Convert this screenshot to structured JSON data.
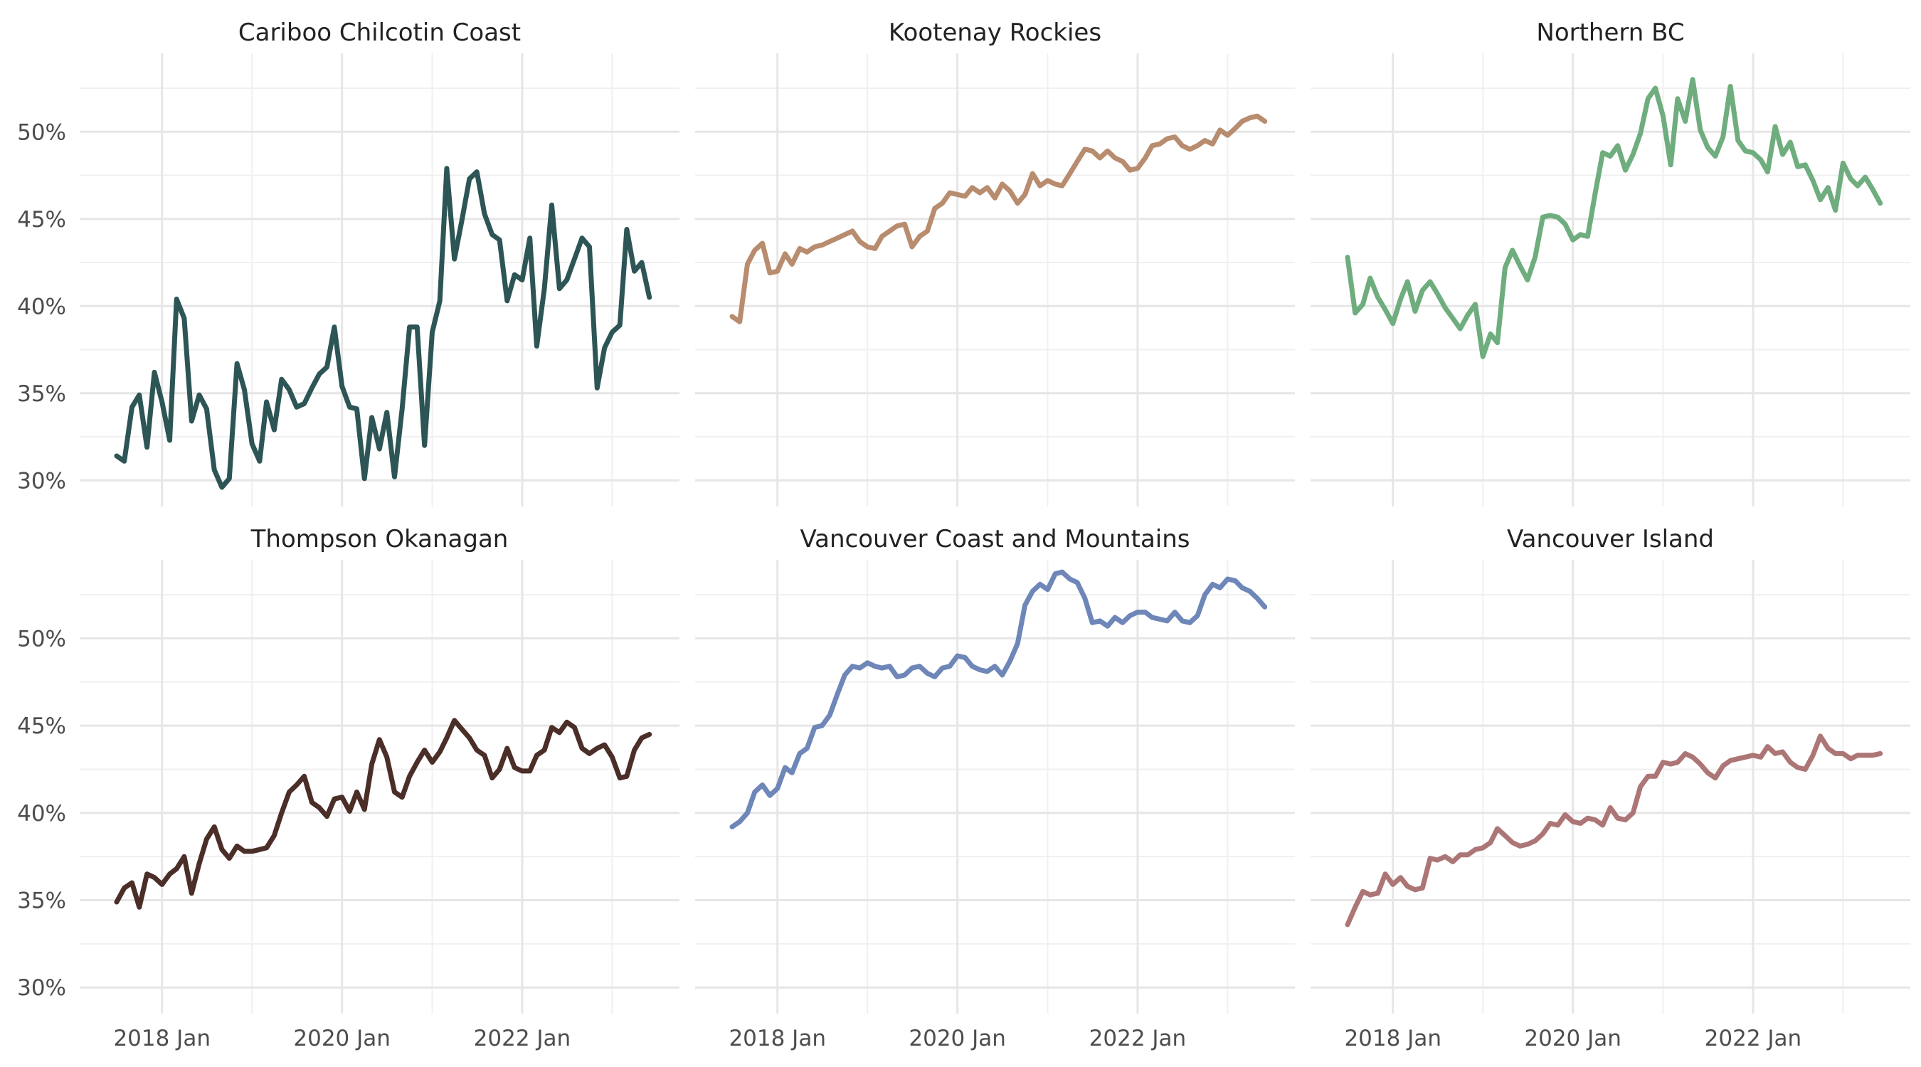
{
  "chart_data": {
    "type": "line",
    "layout": "facet-grid-2x3",
    "grid": true,
    "legend": "none",
    "ylim": [
      28.5,
      54.5
    ],
    "y_ticks": [
      30,
      35,
      40,
      45,
      50
    ],
    "y_tick_labels": [
      "30%",
      "35%",
      "40%",
      "45%",
      "50%"
    ],
    "y_minor_ticks": [
      32.5,
      37.5,
      42.5,
      47.5,
      52.5
    ],
    "xlim": [
      "2017-02-01",
      "2023-10-01"
    ],
    "x_ticks": [
      "2018-01-01",
      "2020-01-01",
      "2022-01-01"
    ],
    "x_tick_labels": [
      "2018 Jan",
      "2020 Jan",
      "2022 Jan"
    ],
    "x_minor_ticks": [
      "2019-01-01",
      "2021-01-01",
      "2023-01-01"
    ],
    "x_start": "2017-07",
    "x_step": "1 month",
    "panels": [
      {
        "title": "Cariboo Chilcotin Coast",
        "color": "#2e5555",
        "values": [
          31.4,
          31.1,
          34.2,
          34.9,
          31.9,
          36.2,
          34.5,
          32.3,
          40.4,
          39.3,
          33.4,
          34.9,
          34.1,
          30.6,
          29.6,
          30.1,
          36.7,
          35.2,
          32.1,
          31.1,
          34.5,
          32.9,
          35.8,
          35.2,
          34.2,
          34.4,
          35.3,
          36.1,
          36.5,
          38.8,
          35.4,
          34.2,
          34.1,
          30.1,
          33.6,
          31.8,
          33.9,
          30.2,
          34.1,
          38.8,
          38.8,
          32.0,
          38.5,
          40.3,
          47.9,
          42.7,
          44.9,
          47.3,
          47.7,
          45.3,
          44.1,
          43.8,
          40.3,
          41.8,
          41.5,
          43.9,
          37.7,
          41.0,
          45.8,
          41.0,
          41.5,
          42.7,
          43.9,
          43.4,
          35.3,
          37.6,
          38.5,
          38.9,
          44.4,
          42.0,
          42.5,
          40.5
        ]
      },
      {
        "title": "Kootenay Rockies",
        "color": "#b88c6e",
        "values": [
          39.4,
          39.1,
          42.4,
          43.2,
          43.6,
          41.9,
          42.0,
          43.0,
          42.4,
          43.3,
          43.1,
          43.4,
          43.5,
          43.7,
          43.9,
          44.1,
          44.3,
          43.7,
          43.4,
          43.3,
          44.0,
          44.3,
          44.6,
          44.7,
          43.4,
          44.0,
          44.3,
          45.6,
          45.9,
          46.5,
          46.4,
          46.3,
          46.8,
          46.5,
          46.8,
          46.2,
          47.0,
          46.6,
          45.9,
          46.4,
          47.6,
          46.9,
          47.2,
          47.0,
          46.9,
          47.6,
          48.3,
          49.0,
          48.9,
          48.5,
          48.9,
          48.5,
          48.3,
          47.8,
          47.9,
          48.5,
          49.2,
          49.3,
          49.6,
          49.7,
          49.2,
          49.0,
          49.2,
          49.5,
          49.3,
          50.1,
          49.8,
          50.2,
          50.6,
          50.8,
          50.9,
          50.6
        ]
      },
      {
        "title": "Northern BC",
        "color": "#6fad7e",
        "values": [
          42.8,
          39.6,
          40.1,
          41.6,
          40.5,
          39.8,
          39.0,
          40.4,
          41.4,
          39.7,
          40.9,
          41.4,
          40.7,
          39.9,
          39.3,
          38.7,
          39.5,
          40.1,
          37.1,
          38.4,
          37.9,
          42.2,
          43.2,
          42.3,
          41.5,
          42.8,
          45.1,
          45.2,
          45.1,
          44.7,
          43.8,
          44.1,
          44.0,
          46.5,
          48.8,
          48.6,
          49.2,
          47.8,
          48.7,
          49.9,
          51.9,
          52.5,
          50.9,
          48.1,
          51.9,
          50.6,
          53.0,
          50.1,
          49.1,
          48.6,
          49.7,
          52.6,
          49.5,
          48.9,
          48.8,
          48.4,
          47.7,
          50.3,
          48.7,
          49.4,
          48.0,
          48.1,
          47.2,
          46.1,
          46.8,
          45.5,
          48.2,
          47.3,
          46.9,
          47.4,
          46.7,
          45.9
        ]
      },
      {
        "title": "Thompson Okanagan",
        "color": "#4a2e27",
        "values": [
          34.9,
          35.7,
          36.0,
          34.6,
          36.5,
          36.3,
          35.9,
          36.5,
          36.8,
          37.5,
          35.4,
          37.1,
          38.5,
          39.2,
          37.9,
          37.4,
          38.1,
          37.8,
          37.8,
          37.9,
          38.0,
          38.7,
          40.0,
          41.2,
          41.6,
          42.1,
          40.6,
          40.3,
          39.8,
          40.8,
          40.9,
          40.1,
          41.2,
          40.2,
          42.8,
          44.2,
          43.2,
          41.2,
          40.9,
          42.1,
          42.9,
          43.6,
          42.9,
          43.5,
          44.3,
          45.3,
          44.8,
          44.3,
          43.6,
          43.3,
          42.0,
          42.5,
          43.7,
          42.6,
          42.4,
          42.4,
          43.3,
          43.6,
          44.9,
          44.6,
          45.2,
          44.9,
          43.7,
          43.4,
          43.7,
          43.9,
          43.2,
          42.0,
          42.1,
          43.6,
          44.3,
          44.5
        ]
      },
      {
        "title": "Vancouver Coast and Mountains",
        "color": "#6e86b8",
        "values": [
          39.2,
          39.5,
          40.0,
          41.2,
          41.6,
          41.0,
          41.4,
          42.6,
          42.3,
          43.4,
          43.7,
          44.9,
          45.0,
          45.6,
          46.8,
          47.9,
          48.4,
          48.3,
          48.6,
          48.4,
          48.3,
          48.4,
          47.8,
          47.9,
          48.3,
          48.4,
          48.0,
          47.8,
          48.3,
          48.4,
          49.0,
          48.9,
          48.4,
          48.2,
          48.1,
          48.4,
          47.9,
          48.7,
          49.7,
          51.9,
          52.7,
          53.1,
          52.8,
          53.7,
          53.8,
          53.4,
          53.2,
          52.3,
          50.9,
          51.0,
          50.7,
          51.2,
          50.9,
          51.3,
          51.5,
          51.5,
          51.2,
          51.1,
          51.0,
          51.5,
          51.0,
          50.9,
          51.3,
          52.5,
          53.1,
          52.9,
          53.4,
          53.3,
          52.9,
          52.7,
          52.3,
          51.8
        ]
      },
      {
        "title": "Vancouver Island",
        "color": "#ad7676",
        "values": [
          33.6,
          34.6,
          35.5,
          35.3,
          35.4,
          36.5,
          35.9,
          36.3,
          35.8,
          35.6,
          35.7,
          37.4,
          37.3,
          37.5,
          37.2,
          37.6,
          37.6,
          37.9,
          38.0,
          38.3,
          39.1,
          38.7,
          38.3,
          38.1,
          38.2,
          38.4,
          38.8,
          39.4,
          39.3,
          39.9,
          39.5,
          39.4,
          39.7,
          39.6,
          39.3,
          40.3,
          39.7,
          39.6,
          40.0,
          41.5,
          42.1,
          42.1,
          42.9,
          42.8,
          42.9,
          43.4,
          43.2,
          42.8,
          42.3,
          42.0,
          42.7,
          43.0,
          43.1,
          43.2,
          43.3,
          43.2,
          43.8,
          43.4,
          43.5,
          42.9,
          42.6,
          42.5,
          43.3,
          44.4,
          43.7,
          43.4,
          43.4,
          43.1,
          43.3,
          43.3,
          43.3,
          43.4
        ]
      }
    ]
  }
}
